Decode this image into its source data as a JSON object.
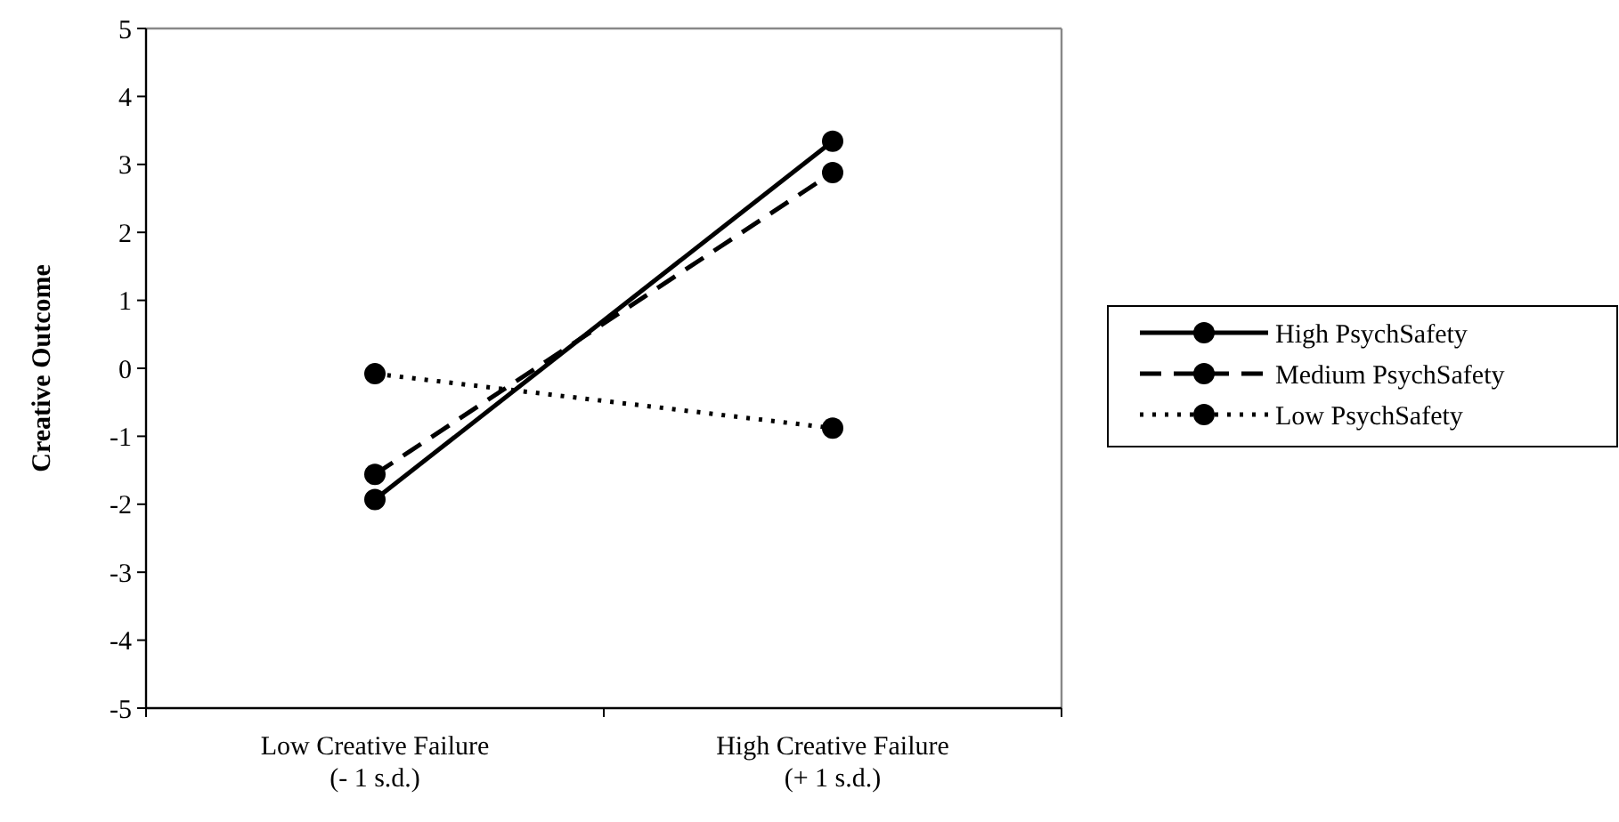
{
  "chart_data": {
    "type": "line",
    "ylabel": "Creative Outcome",
    "categories": [
      "Low Creative Failure\n(- 1 s.d.)",
      "High Creative Failure\n(+ 1 s.d.)"
    ],
    "series": [
      {
        "name": "High PsychSafety",
        "color": "#000000",
        "values": [
          -1.93,
          3.34
        ],
        "line_style": "solid"
      },
      {
        "name": "Medium PsychSafety",
        "color": "#000000",
        "values": [
          -1.56,
          2.88
        ],
        "line_style": "dashed"
      },
      {
        "name": "Low PsychSafety",
        "color": "#000000",
        "values": [
          -0.08,
          -0.88
        ],
        "line_style": "dotted"
      }
    ],
    "ylim": [
      -5,
      5
    ],
    "yticks": [
      -5,
      -4,
      -3,
      -2,
      -1,
      0,
      1,
      2,
      3,
      4,
      5
    ],
    "marker": "circle",
    "legend": "right",
    "grid": false
  }
}
